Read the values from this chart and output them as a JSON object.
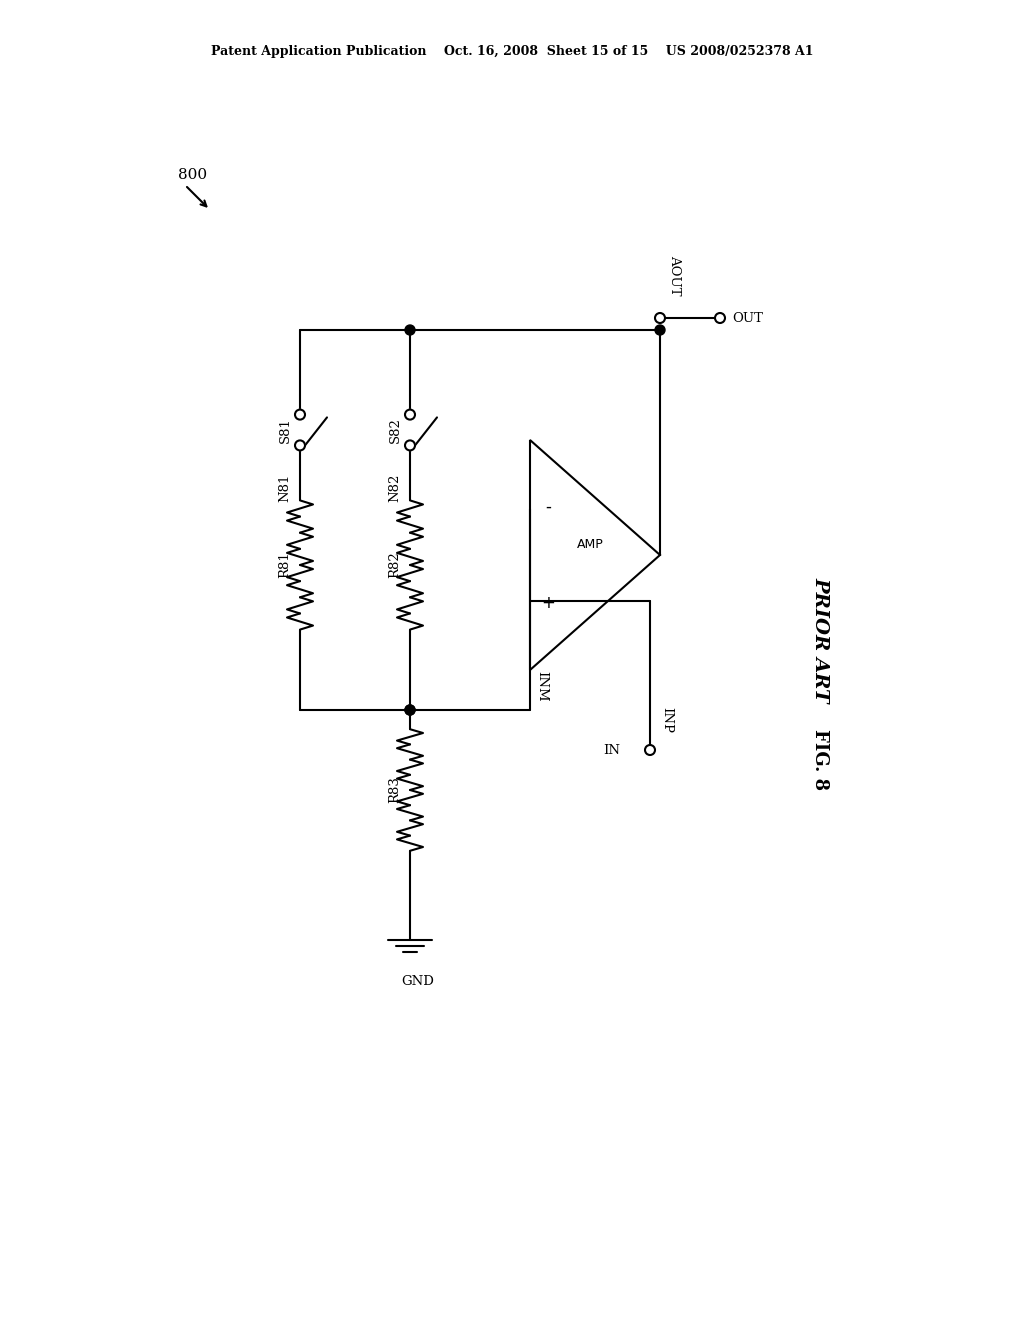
{
  "header": "Patent Application Publication    Oct. 16, 2008  Sheet 15 of 15    US 2008/0252378 A1",
  "fig_label": "FIG. 8",
  "prior_art_label": "PRIOR ART",
  "ref_num": "800",
  "bg": "#ffffff",
  "lc": "#000000",
  "lw": 1.5
}
